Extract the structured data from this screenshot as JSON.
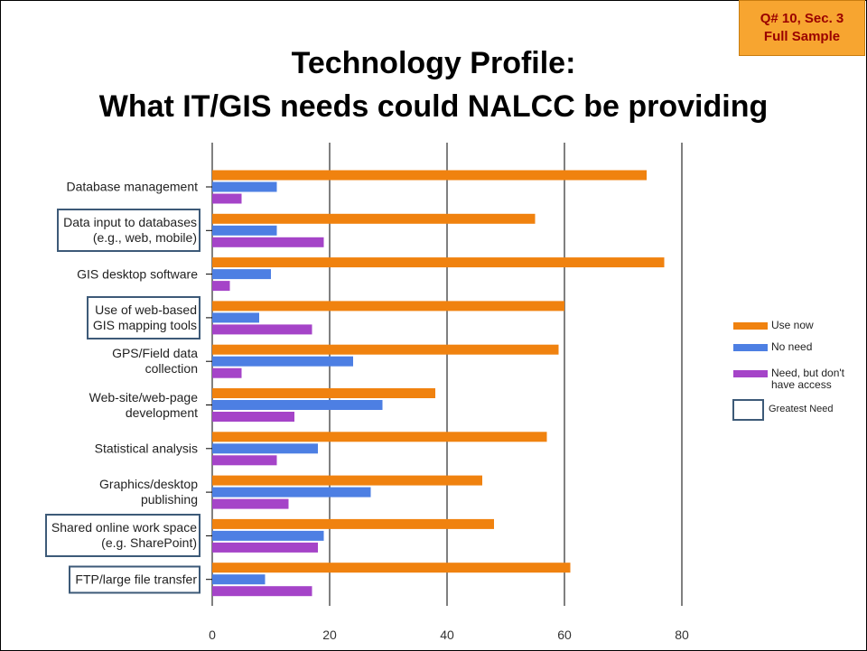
{
  "badge": [
    "Q# 10, Sec. 3",
    "Full Sample"
  ],
  "chart_data": {
    "type": "bar",
    "orientation": "horizontal",
    "title": [
      "Technology Profile:",
      "What IT/GIS needs could NALCC be providing"
    ],
    "categories": [
      "Database management",
      "Data input to databases\n(e.g., web, mobile)",
      "GIS desktop software",
      "Use of web-based\nGIS mapping tools",
      "GPS/Field data\ncollection",
      "Web-site/web-page\ndevelopment",
      "Statistical analysis",
      "Graphics/desktop\npublishing",
      "Shared online work space\n(e.g. SharePoint)",
      "FTP/large file transfer"
    ],
    "series": [
      {
        "name": "Use now",
        "color": "#f0820f",
        "values": [
          74,
          55,
          77,
          60,
          59,
          38,
          57,
          46,
          48,
          61
        ]
      },
      {
        "name": "No need",
        "color": "#4d7fe3",
        "values": [
          11,
          11,
          10,
          8,
          24,
          29,
          18,
          27,
          19,
          9
        ]
      },
      {
        "name": "Need, but don't have access",
        "color": "#a544c8",
        "values": [
          5,
          19,
          3,
          17,
          5,
          14,
          11,
          13,
          18,
          17
        ]
      }
    ],
    "xlim": [
      0,
      80
    ],
    "xticks": [
      0,
      20,
      40,
      60,
      80
    ],
    "grid": true,
    "legend": "right",
    "highlighted_categories": [
      1,
      3,
      8,
      9
    ],
    "highlight_label": "Greatest Need"
  }
}
